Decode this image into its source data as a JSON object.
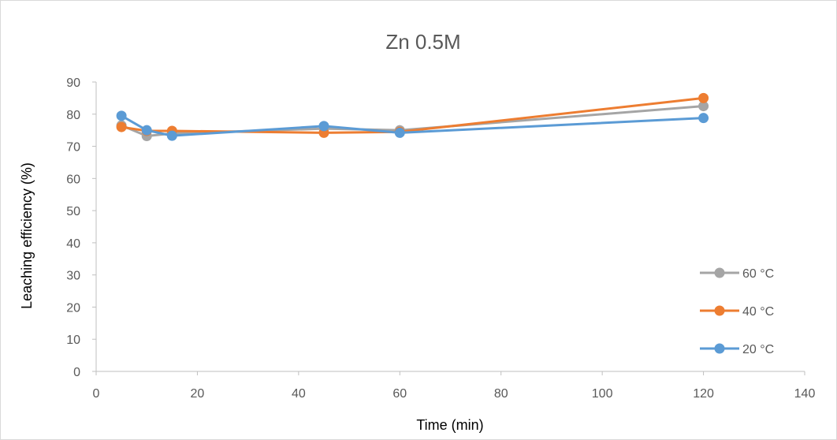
{
  "chart_data": {
    "type": "line",
    "title": "Zn 0.5M",
    "xlabel": "Time (min)",
    "ylabel": "Leaching efficiency (%)",
    "xlim": [
      0,
      140
    ],
    "ylim": [
      0,
      90
    ],
    "xticks": [
      0,
      20,
      40,
      60,
      80,
      100,
      120,
      140
    ],
    "yticks": [
      0,
      10,
      20,
      30,
      40,
      50,
      60,
      70,
      80,
      90
    ],
    "grid": false,
    "legend_position": "right",
    "series": [
      {
        "name": "60 °C",
        "color": "#a5a5a5",
        "x": [
          5,
          10,
          15,
          45,
          60,
          120
        ],
        "y": [
          76.5,
          73.2,
          74.0,
          75.5,
          75.0,
          82.5
        ]
      },
      {
        "name": "40 °C",
        "color": "#ed7d31",
        "x": [
          5,
          10,
          15,
          45,
          60,
          120
        ],
        "y": [
          76.0,
          74.8,
          74.8,
          74.2,
          74.5,
          85.0
        ]
      },
      {
        "name": "20 °C",
        "color": "#5b9bd5",
        "x": [
          5,
          10,
          15,
          45,
          60,
          120
        ],
        "y": [
          79.5,
          75.0,
          73.3,
          76.3,
          74.2,
          78.8
        ]
      }
    ]
  }
}
